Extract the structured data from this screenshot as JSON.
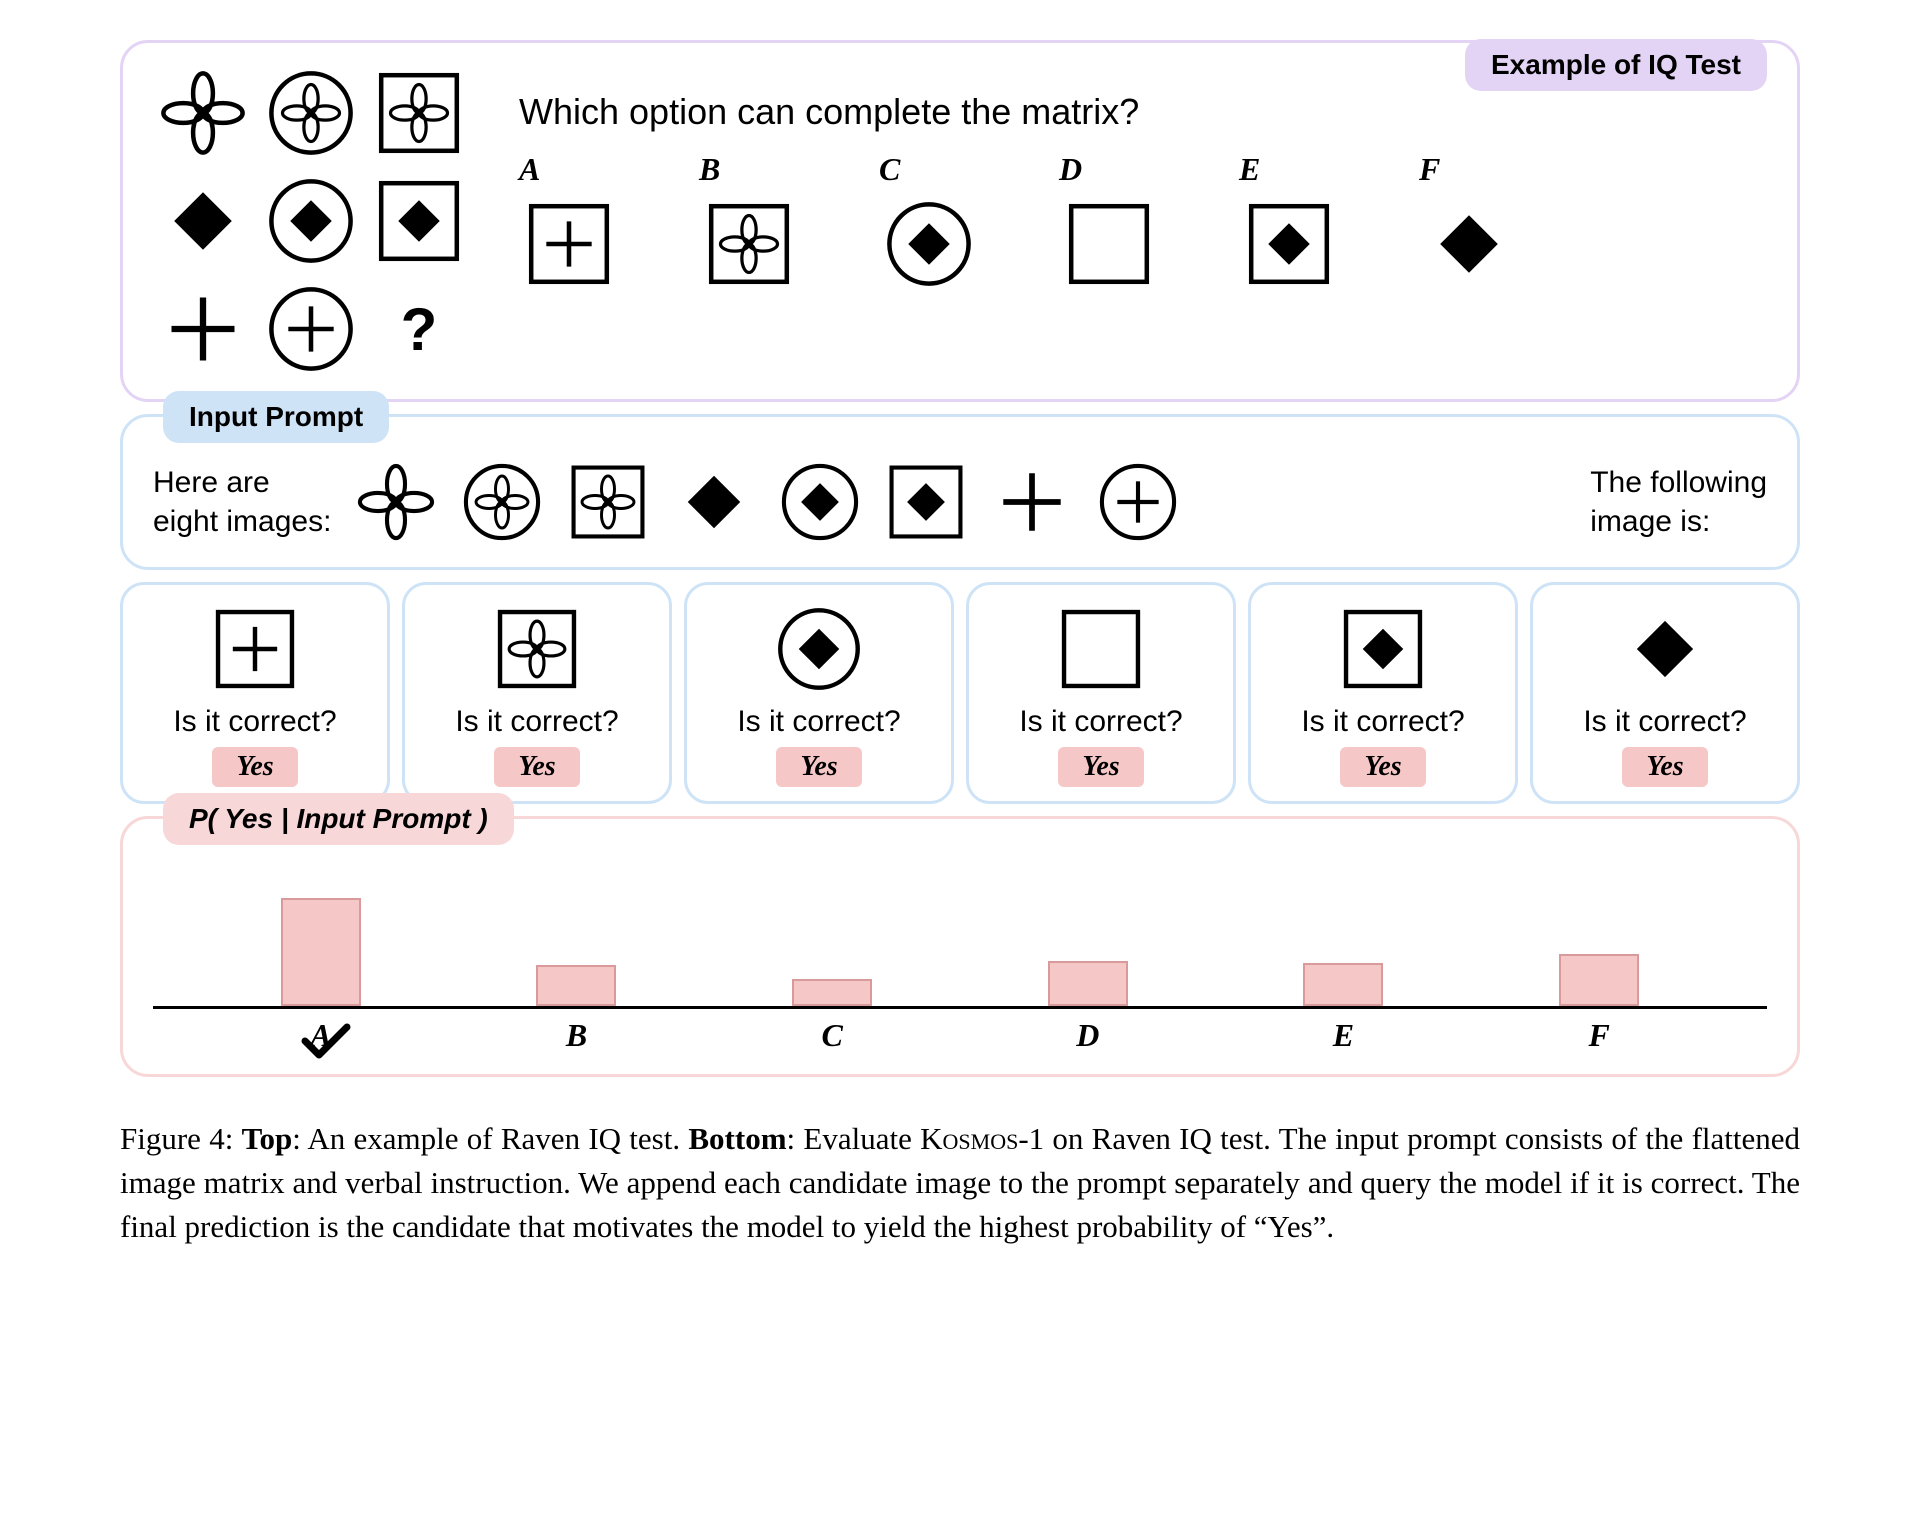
{
  "iq_panel": {
    "badge": "Example of IQ Test",
    "question": "Which option can complete the matrix?",
    "matrix": [
      [
        "clover-plain",
        "clover-circle",
        "clover-square"
      ],
      [
        "diamond-plain",
        "diamond-circle",
        "diamond-square"
      ],
      [
        "plus-plain",
        "plus-circle",
        "question"
      ]
    ],
    "options": [
      {
        "label": "A",
        "shape": "plus-square"
      },
      {
        "label": "B",
        "shape": "clover-square"
      },
      {
        "label": "C",
        "shape": "diamond-circle"
      },
      {
        "label": "D",
        "shape": "empty-square"
      },
      {
        "label": "E",
        "shape": "diamond-square"
      },
      {
        "label": "F",
        "shape": "diamond-plain"
      }
    ]
  },
  "prompt_panel": {
    "badge": "Input Prompt",
    "lead_text": "Here are\neight images:",
    "images": [
      "clover-plain",
      "clover-circle",
      "clover-square",
      "diamond-plain",
      "diamond-circle",
      "diamond-square",
      "plus-plain",
      "plus-circle"
    ],
    "tail_text": "The following\nimage is:"
  },
  "candidates": [
    {
      "shape": "plus-square",
      "question": "Is it correct?",
      "answer": "Yes"
    },
    {
      "shape": "clover-square",
      "question": "Is it correct?",
      "answer": "Yes"
    },
    {
      "shape": "diamond-circle",
      "question": "Is it correct?",
      "answer": "Yes"
    },
    {
      "shape": "empty-square",
      "question": "Is it correct?",
      "answer": "Yes"
    },
    {
      "shape": "diamond-square",
      "question": "Is it correct?",
      "answer": "Yes"
    },
    {
      "shape": "diamond-plain",
      "question": "Is it correct?",
      "answer": "Yes"
    }
  ],
  "chart": {
    "badge": "P( Yes | Input Prompt )",
    "type": "bar",
    "categories": [
      "A",
      "B",
      "C",
      "D",
      "E",
      "F"
    ],
    "values": [
      100,
      38,
      25,
      42,
      40,
      48
    ],
    "ylim": [
      0,
      120
    ],
    "bar_color": "#f5c7c7",
    "bar_border_color": "#d89a9a",
    "background_color": "#ffffff",
    "axis_color": "#000000",
    "selected_index": 0
  },
  "caption": {
    "fig_label": "Figure 4:",
    "top_label": "Top",
    "top_text": ": An example of Raven IQ test. ",
    "bottom_label": "Bottom",
    "bottom_text_1": ": Evaluate ",
    "kosmos": "Kosmos",
    "bottom_text_2": "-1 on Raven IQ test. The input prompt consists of the flattened image matrix and verbal instruction. We append each candidate image to the prompt separately and query the model if it is correct. The final prediction is the candidate that motivates the model to yield the highest probability of “Yes”."
  },
  "colors": {
    "purple_panel": "#e3d4f5",
    "blue_panel": "#cfe3f7",
    "pink_panel": "#f7d7d7",
    "pink_fill": "#f5c7c7"
  }
}
